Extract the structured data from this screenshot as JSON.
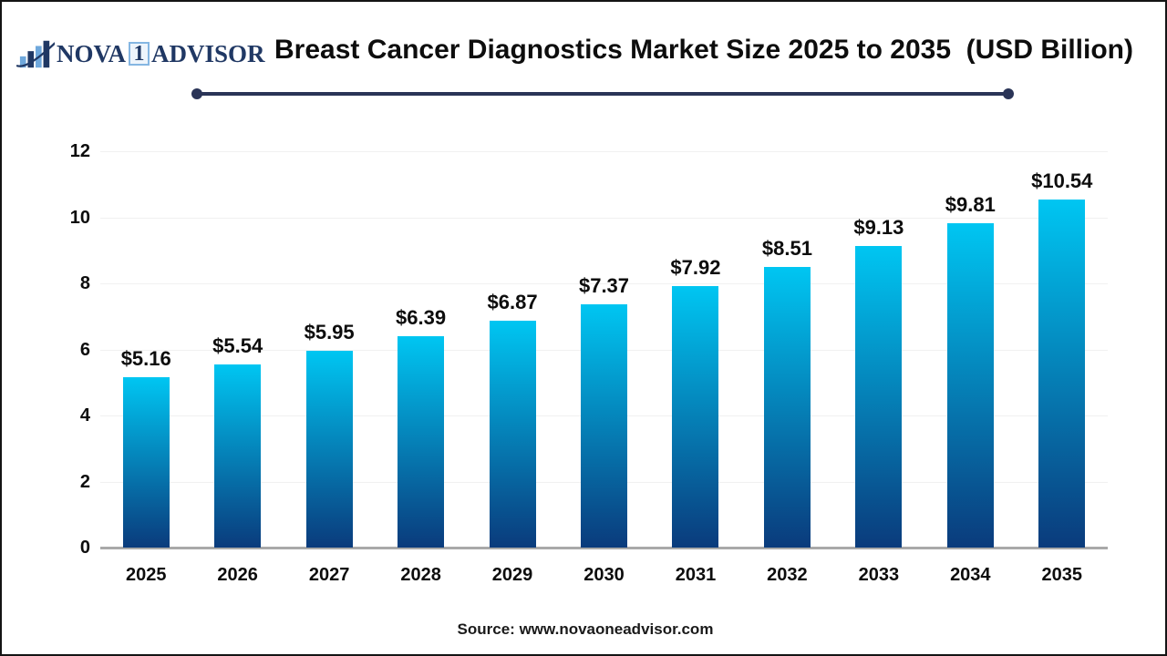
{
  "logo": {
    "icon": "bar-chart-swoosh-icon",
    "brand_prefix": "NOVA",
    "brand_number": "1",
    "brand_suffix": "ADVISOR",
    "navy": "#203864",
    "light_blue": "#6fa8dc"
  },
  "header": {
    "title": "Breast Cancer Diagnostics Market Size 2025 to 2035  (USD Billion)"
  },
  "chart_data": {
    "type": "bar",
    "title": "Breast Cancer Diagnostics Market Size 2025 to 2035 (USD Billion)",
    "categories": [
      "2025",
      "2026",
      "2027",
      "2028",
      "2029",
      "2030",
      "2031",
      "2032",
      "2033",
      "2034",
      "2035"
    ],
    "values": [
      5.16,
      5.54,
      5.95,
      6.39,
      6.87,
      7.37,
      7.92,
      8.51,
      9.13,
      9.81,
      10.54
    ],
    "value_labels": [
      "$5.16",
      "$5.54",
      "$5.95",
      "$6.39",
      "$6.87",
      "$7.37",
      "$7.92",
      "$8.51",
      "$9.13",
      "$9.81",
      "$10.54"
    ],
    "xlabel": "",
    "ylabel": "",
    "ylim": [
      0,
      12
    ],
    "yticks": [
      0,
      2,
      4,
      6,
      8,
      10,
      12
    ],
    "grid": true,
    "legend": "none",
    "bar_gradient_top": "#00c6f2",
    "bar_gradient_bottom": "#0a3b7c",
    "axis_line_color": "#a9a9a9",
    "gridline_color": "#f1f1f1"
  },
  "footer": {
    "source": "Source: www.novaoneadvisor.com"
  },
  "colors": {
    "accent_navy": "#2a3457",
    "text_black": "#0d0d0d"
  }
}
